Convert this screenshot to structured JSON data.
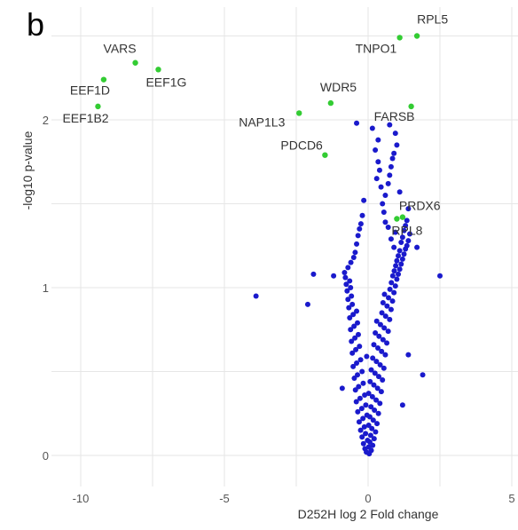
{
  "panel_label": "b",
  "chart_data": {
    "type": "scatter",
    "title": "",
    "xlabel": "D252H log 2 Fold change",
    "ylabel": "-log10 p-value",
    "xlim": [
      -11,
      5
    ],
    "ylim": [
      -0.05,
      2.6
    ],
    "x_ticks": [
      -10,
      -5,
      0,
      5
    ],
    "y_ticks": [
      0,
      1,
      2
    ],
    "x_tick_labels": [
      "-10",
      "-5",
      "0",
      "5"
    ],
    "y_tick_labels": [
      "0",
      "1",
      "2"
    ],
    "grid": true,
    "colors": {
      "significant": "#33cc33",
      "not_significant": "#1a1acc"
    },
    "significant_points": [
      {
        "name": "RPL5",
        "x": 1.7,
        "y": 2.5
      },
      {
        "name": "TNPO1",
        "x": 1.1,
        "y": 2.49
      },
      {
        "name": "VARS",
        "x": -8.1,
        "y": 2.34
      },
      {
        "name": "EEF1G",
        "x": -7.3,
        "y": 2.3
      },
      {
        "name": "EEF1D",
        "x": -9.2,
        "y": 2.24
      },
      {
        "name": "EEF1B2",
        "x": -9.4,
        "y": 2.08
      },
      {
        "name": "WDR5",
        "x": -1.3,
        "y": 2.1
      },
      {
        "name": "FARSB",
        "x": 1.5,
        "y": 2.08
      },
      {
        "name": "NAP1L3",
        "x": -2.4,
        "y": 2.04
      },
      {
        "name": "PDCD6",
        "x": -1.5,
        "y": 1.79
      },
      {
        "name": "PRDX6",
        "x": 1.2,
        "y": 1.42
      },
      {
        "name": "RPL8",
        "x": 1.0,
        "y": 1.41
      }
    ],
    "other_points": [
      [
        0.04,
        0.01
      ],
      [
        -0.06,
        0.02
      ],
      [
        0.11,
        0.03
      ],
      [
        -0.11,
        0.04
      ],
      [
        0.02,
        0.05
      ],
      [
        0.16,
        0.06
      ],
      [
        -0.16,
        0.07
      ],
      [
        0.06,
        0.08
      ],
      [
        -0.02,
        0.09
      ],
      [
        0.21,
        0.1
      ],
      [
        -0.21,
        0.11
      ],
      [
        0.09,
        0.12
      ],
      [
        -0.09,
        0.13
      ],
      [
        0.26,
        0.14
      ],
      [
        -0.26,
        0.15
      ],
      [
        0.13,
        0.16
      ],
      [
        -0.13,
        0.17
      ],
      [
        0.02,
        0.18
      ],
      [
        0.31,
        0.19
      ],
      [
        -0.31,
        0.2
      ],
      [
        0.18,
        0.21
      ],
      [
        -0.18,
        0.22
      ],
      [
        0.06,
        0.23
      ],
      [
        -0.04,
        0.24
      ],
      [
        0.36,
        0.25
      ],
      [
        -0.36,
        0.26
      ],
      [
        0.22,
        0.27
      ],
      [
        -0.22,
        0.28
      ],
      [
        0.1,
        0.29
      ],
      [
        -0.08,
        0.3
      ],
      [
        0.41,
        0.31
      ],
      [
        -0.41,
        0.32
      ],
      [
        0.28,
        0.33
      ],
      [
        -0.28,
        0.34
      ],
      [
        0.15,
        0.35
      ],
      [
        -0.12,
        0.36
      ],
      [
        0.02,
        0.37
      ],
      [
        0.46,
        0.38
      ],
      [
        -0.44,
        0.39
      ],
      [
        0.33,
        0.4
      ],
      [
        -0.33,
        0.41
      ],
      [
        0.2,
        0.42
      ],
      [
        -0.17,
        0.43
      ],
      [
        0.07,
        0.44
      ],
      [
        0.5,
        0.45
      ],
      [
        -0.48,
        0.46
      ],
      [
        0.37,
        0.47
      ],
      [
        -0.37,
        0.48
      ],
      [
        0.24,
        0.49
      ],
      [
        -0.21,
        0.5
      ],
      [
        0.11,
        0.51
      ],
      [
        0.55,
        0.52
      ],
      [
        -0.52,
        0.53
      ],
      [
        0.42,
        0.54
      ],
      [
        -0.4,
        0.55
      ],
      [
        0.29,
        0.56
      ],
      [
        -0.26,
        0.57
      ],
      [
        0.16,
        0.58
      ],
      [
        -0.05,
        0.59
      ],
      [
        0.6,
        0.6
      ],
      [
        -0.55,
        0.61
      ],
      [
        0.47,
        0.62
      ],
      [
        -0.43,
        0.63
      ],
      [
        0.34,
        0.64
      ],
      [
        -0.3,
        0.65
      ],
      [
        0.2,
        0.66
      ],
      [
        0.65,
        0.67
      ],
      [
        -0.58,
        0.68
      ],
      [
        0.52,
        0.69
      ],
      [
        -0.46,
        0.7
      ],
      [
        0.38,
        0.71
      ],
      [
        -0.34,
        0.72
      ],
      [
        0.25,
        0.73
      ],
      [
        0.7,
        0.74
      ],
      [
        -0.61,
        0.75
      ],
      [
        0.56,
        0.76
      ],
      [
        -0.49,
        0.77
      ],
      [
        0.43,
        0.78
      ],
      [
        -0.37,
        0.79
      ],
      [
        0.3,
        0.8
      ],
      [
        0.75,
        0.81
      ],
      [
        -0.64,
        0.82
      ],
      [
        0.61,
        0.83
      ],
      [
        -0.52,
        0.84
      ],
      [
        0.48,
        0.85
      ],
      [
        -0.4,
        0.86
      ],
      [
        0.8,
        0.87
      ],
      [
        -0.67,
        0.88
      ],
      [
        0.66,
        0.89
      ],
      [
        -0.55,
        0.9
      ],
      [
        0.52,
        0.91
      ],
      [
        0.85,
        0.92
      ],
      [
        -0.7,
        0.93
      ],
      [
        0.71,
        0.94
      ],
      [
        -0.58,
        0.95
      ],
      [
        0.57,
        0.96
      ],
      [
        0.9,
        0.97
      ],
      [
        -0.73,
        0.98
      ],
      [
        0.76,
        0.99
      ],
      [
        -0.61,
        1.0
      ],
      [
        0.95,
        1.01
      ],
      [
        -0.76,
        1.02
      ],
      [
        0.81,
        1.03
      ],
      [
        -0.64,
        1.04
      ],
      [
        1.0,
        1.05
      ],
      [
        -0.79,
        1.06
      ],
      [
        0.86,
        1.07
      ],
      [
        1.05,
        1.08
      ],
      [
        -0.82,
        1.09
      ],
      [
        0.91,
        1.1
      ],
      [
        1.1,
        1.11
      ],
      [
        -0.7,
        1.12
      ],
      [
        0.96,
        1.13
      ],
      [
        1.15,
        1.14
      ],
      [
        -0.6,
        1.15
      ],
      [
        1.0,
        1.16
      ],
      [
        1.2,
        1.17
      ],
      [
        -0.5,
        1.18
      ],
      [
        1.05,
        1.19
      ],
      [
        1.25,
        1.2
      ],
      [
        -0.45,
        1.21
      ],
      [
        1.1,
        1.22
      ],
      [
        1.3,
        1.23
      ],
      [
        0.9,
        1.24
      ],
      [
        1.35,
        1.25
      ],
      [
        -0.4,
        1.26
      ],
      [
        1.15,
        1.27
      ],
      [
        1.4,
        1.28
      ],
      [
        0.8,
        1.29
      ],
      [
        1.2,
        1.3
      ],
      [
        -0.35,
        1.31
      ],
      [
        1.45,
        1.32
      ],
      [
        0.95,
        1.33
      ],
      [
        1.25,
        1.34
      ],
      [
        -0.3,
        1.35
      ],
      [
        0.7,
        1.36
      ],
      [
        1.3,
        1.37
      ],
      [
        -0.25,
        1.38
      ],
      [
        0.6,
        1.39
      ],
      [
        1.35,
        1.4
      ],
      [
        -0.2,
        1.43
      ],
      [
        0.55,
        1.45
      ],
      [
        1.4,
        1.47
      ],
      [
        0.5,
        1.5
      ],
      [
        -0.15,
        1.52
      ],
      [
        0.6,
        1.55
      ],
      [
        1.1,
        1.57
      ],
      [
        0.45,
        1.6
      ],
      [
        0.7,
        1.62
      ],
      [
        0.3,
        1.65
      ],
      [
        0.75,
        1.67
      ],
      [
        0.4,
        1.7
      ],
      [
        0.8,
        1.72
      ],
      [
        0.35,
        1.75
      ],
      [
        0.85,
        1.77
      ],
      [
        0.9,
        1.8
      ],
      [
        0.25,
        1.82
      ],
      [
        1.0,
        1.85
      ],
      [
        0.35,
        1.88
      ],
      [
        0.95,
        1.92
      ],
      [
        0.15,
        1.95
      ],
      [
        0.75,
        1.97
      ],
      [
        -0.4,
        1.98
      ],
      [
        -3.9,
        0.95
      ],
      [
        2.5,
        1.07
      ],
      [
        1.9,
        0.48
      ],
      [
        -1.9,
        1.08
      ],
      [
        -2.1,
        0.9
      ],
      [
        1.7,
        1.24
      ],
      [
        -1.2,
        1.07
      ],
      [
        1.4,
        0.6
      ],
      [
        -0.9,
        0.4
      ],
      [
        1.2,
        0.3
      ]
    ]
  }
}
